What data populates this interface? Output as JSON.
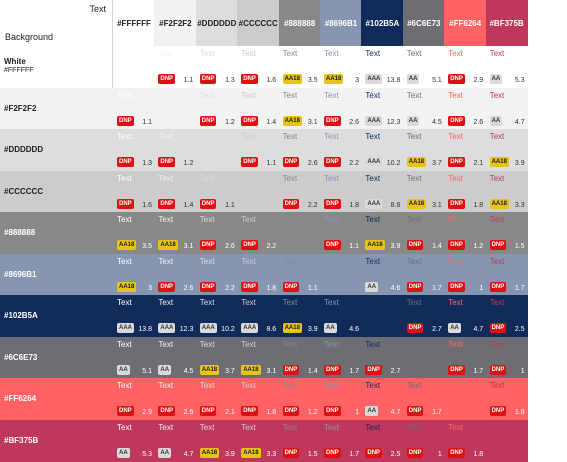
{
  "corner": {
    "text_label": "Text",
    "background_label": "Background"
  },
  "colors": [
    {
      "hex": "#FFFFFF",
      "label": "#FFFFFF"
    },
    {
      "hex": "#F2F2F2",
      "label": "#F2F2F2"
    },
    {
      "hex": "#DDDDDD",
      "label": "#DDDDDD"
    },
    {
      "hex": "#CCCCCC",
      "label": "#CCCCCC"
    },
    {
      "hex": "#888888",
      "label": "#888888"
    },
    {
      "hex": "#8696B1",
      "label": "#8696B1"
    },
    {
      "hex": "#102B5A",
      "label": "#102B5A"
    },
    {
      "hex": "#6C6E73",
      "label": "#6C6E73"
    },
    {
      "hex": "#FF6264",
      "label": "#FF6264"
    },
    {
      "hex": "#BF375B",
      "label": "#BF375B"
    }
  ],
  "rows": [
    {
      "label": "White",
      "sublabel": "#FFFFFF",
      "cells": [
        null,
        {
          "text": "Text",
          "badge": "DNP",
          "ratio": "1.1"
        },
        {
          "text": "Text",
          "badge": "DNP",
          "ratio": "1.3"
        },
        {
          "text": "Text",
          "badge": "DNP",
          "ratio": "1.6"
        },
        {
          "text": "Text",
          "badge": "AA18",
          "ratio": "3.5"
        },
        {
          "text": "Text",
          "badge": "AA18",
          "ratio": "3"
        },
        {
          "text": "Text",
          "badge": "AAA",
          "ratio": "13.8"
        },
        {
          "text": "Text",
          "badge": "AA",
          "ratio": "5.1"
        },
        {
          "text": "Text",
          "badge": "DNP",
          "ratio": "2.9"
        },
        {
          "text": "Text",
          "badge": "AA",
          "ratio": "5.3"
        }
      ]
    },
    {
      "label": "#F2F2F2",
      "sublabel": "",
      "cells": [
        {
          "text": "Text",
          "badge": "DNP",
          "ratio": "1.1"
        },
        null,
        {
          "text": "Text",
          "badge": "DNP",
          "ratio": "1.2"
        },
        {
          "text": "Text",
          "badge": "DNP",
          "ratio": "1.4"
        },
        {
          "text": "Text",
          "badge": "AA18",
          "ratio": "3.1"
        },
        {
          "text": "Text",
          "badge": "DNP",
          "ratio": "2.6"
        },
        {
          "text": "Text",
          "badge": "AAA",
          "ratio": "12.3"
        },
        {
          "text": "Text",
          "badge": "AA",
          "ratio": "4.5"
        },
        {
          "text": "Text",
          "badge": "DNP",
          "ratio": "2.6"
        },
        {
          "text": "Text",
          "badge": "AA",
          "ratio": "4.7"
        }
      ]
    },
    {
      "label": "#DDDDDD",
      "sublabel": "",
      "cells": [
        {
          "text": "Text",
          "badge": "DNP",
          "ratio": "1.3"
        },
        {
          "text": "Text",
          "badge": "DNP",
          "ratio": "1.2"
        },
        null,
        {
          "text": "Text",
          "badge": "DNP",
          "ratio": "1.1"
        },
        {
          "text": "Text",
          "badge": "DNP",
          "ratio": "2.6"
        },
        {
          "text": "Text",
          "badge": "DNP",
          "ratio": "2.2"
        },
        {
          "text": "Text",
          "badge": "AAA",
          "ratio": "10.2"
        },
        {
          "text": "Text",
          "badge": "AA18",
          "ratio": "3.7"
        },
        {
          "text": "Text",
          "badge": "DNP",
          "ratio": "2.1"
        },
        {
          "text": "Text",
          "badge": "AA18",
          "ratio": "3.9"
        }
      ]
    },
    {
      "label": "#CCCCCC",
      "sublabel": "",
      "cells": [
        {
          "text": "Text",
          "badge": "DNP",
          "ratio": "1.6"
        },
        {
          "text": "Text",
          "badge": "DNP",
          "ratio": "1.4"
        },
        {
          "text": "Text",
          "badge": "DNP",
          "ratio": "1.1"
        },
        null,
        {
          "text": "Text",
          "badge": "DNP",
          "ratio": "2.2"
        },
        {
          "text": "Text",
          "badge": "DNP",
          "ratio": "1.8"
        },
        {
          "text": "Text",
          "badge": "AAA",
          "ratio": "8.6"
        },
        {
          "text": "Text",
          "badge": "AA18",
          "ratio": "3.1"
        },
        {
          "text": "Text",
          "badge": "DNP",
          "ratio": "1.8"
        },
        {
          "text": "Text",
          "badge": "AA18",
          "ratio": "3.3"
        }
      ]
    },
    {
      "label": "#888888",
      "sublabel": "",
      "cells": [
        {
          "text": "Text",
          "badge": "AA18",
          "ratio": "3.5"
        },
        {
          "text": "Text",
          "badge": "AA18",
          "ratio": "3.1"
        },
        {
          "text": "Text",
          "badge": "DNP",
          "ratio": "2.6"
        },
        {
          "text": "Text",
          "badge": "DNP",
          "ratio": "2.2"
        },
        null,
        {
          "text": "Text",
          "badge": "DNP",
          "ratio": "1.1"
        },
        {
          "text": "Text",
          "badge": "AA18",
          "ratio": "3.9"
        },
        {
          "text": "Text",
          "badge": "DNP",
          "ratio": "1.4"
        },
        {
          "text": "Text",
          "badge": "DNP",
          "ratio": "1.2"
        },
        {
          "text": "Text",
          "badge": "DNP",
          "ratio": "1.5"
        }
      ]
    },
    {
      "label": "#8696B1",
      "sublabel": "",
      "cells": [
        {
          "text": "Text",
          "badge": "AA18",
          "ratio": "3"
        },
        {
          "text": "Text",
          "badge": "DNP",
          "ratio": "2.6"
        },
        {
          "text": "Text",
          "badge": "DNP",
          "ratio": "2.2"
        },
        {
          "text": "Text",
          "badge": "DNP",
          "ratio": "1.8"
        },
        {
          "text": "Text",
          "badge": "DNP",
          "ratio": "1.1"
        },
        null,
        {
          "text": "Text",
          "badge": "AA",
          "ratio": "4.6"
        },
        {
          "text": "Text",
          "badge": "DNP",
          "ratio": "1.7"
        },
        {
          "text": "Text",
          "badge": "DNP",
          "ratio": "1"
        },
        {
          "text": "Text",
          "badge": "DNP",
          "ratio": "1.7"
        }
      ]
    },
    {
      "label": "#102B5A",
      "sublabel": "",
      "cells": [
        {
          "text": "Text",
          "badge": "AAA",
          "ratio": "13.8"
        },
        {
          "text": "Text",
          "badge": "AAA",
          "ratio": "12.3"
        },
        {
          "text": "Text",
          "badge": "AAA",
          "ratio": "10.2"
        },
        {
          "text": "Text",
          "badge": "AAA",
          "ratio": "8.6"
        },
        {
          "text": "Text",
          "badge": "AA18",
          "ratio": "3.9"
        },
        {
          "text": "Text",
          "badge": "AA",
          "ratio": "4.6"
        },
        null,
        {
          "text": "Text",
          "badge": "DNP",
          "ratio": "2.7"
        },
        {
          "text": "Text",
          "badge": "AA",
          "ratio": "4.7"
        },
        {
          "text": "Text",
          "badge": "DNP",
          "ratio": "2.5"
        }
      ]
    },
    {
      "label": "#6C6E73",
      "sublabel": "",
      "cells": [
        {
          "text": "Text",
          "badge": "AA",
          "ratio": "5.1"
        },
        {
          "text": "Text",
          "badge": "AA",
          "ratio": "4.5"
        },
        {
          "text": "Text",
          "badge": "AA18",
          "ratio": "3.7"
        },
        {
          "text": "Text",
          "badge": "AA18",
          "ratio": "3.1"
        },
        {
          "text": "Text",
          "badge": "DNP",
          "ratio": "1.4"
        },
        {
          "text": "Text",
          "badge": "DNP",
          "ratio": "1.7"
        },
        {
          "text": "Text",
          "badge": "DNP",
          "ratio": "2.7"
        },
        null,
        {
          "text": "Text",
          "badge": "DNP",
          "ratio": "1.7"
        },
        {
          "text": "Text",
          "badge": "DNP",
          "ratio": "1"
        }
      ]
    },
    {
      "label": "#FF6264",
      "sublabel": "",
      "cells": [
        {
          "text": "Text",
          "badge": "DNP",
          "ratio": "2.9"
        },
        {
          "text": "Text",
          "badge": "DNP",
          "ratio": "2.6"
        },
        {
          "text": "Text",
          "badge": "DNP",
          "ratio": "2.1"
        },
        {
          "text": "Text",
          "badge": "DNP",
          "ratio": "1.8"
        },
        {
          "text": "Text",
          "badge": "DNP",
          "ratio": "1.2"
        },
        {
          "text": "Text",
          "badge": "DNP",
          "ratio": "1"
        },
        {
          "text": "Text",
          "badge": "AA",
          "ratio": "4.7"
        },
        {
          "text": "Text",
          "badge": "DNP",
          "ratio": "1.7"
        },
        null,
        {
          "text": "Text",
          "badge": "DNP",
          "ratio": "1.8"
        }
      ]
    },
    {
      "label": "#BF375B",
      "sublabel": "",
      "cells": [
        {
          "text": "Text",
          "badge": "AA",
          "ratio": "5.3"
        },
        {
          "text": "Text",
          "badge": "AA",
          "ratio": "4.7"
        },
        {
          "text": "Text",
          "badge": "AA18",
          "ratio": "3.9"
        },
        {
          "text": "Text",
          "badge": "AA18",
          "ratio": "3.3"
        },
        {
          "text": "Text",
          "badge": "DNP",
          "ratio": "1.5"
        },
        {
          "text": "Text",
          "badge": "DNP",
          "ratio": "1.7"
        },
        {
          "text": "Text",
          "badge": "DNP",
          "ratio": "2.5"
        },
        {
          "text": "Text",
          "badge": "DNP",
          "ratio": "1"
        },
        {
          "text": "Text",
          "badge": "DNP",
          "ratio": "1.8"
        },
        null
      ]
    }
  ]
}
